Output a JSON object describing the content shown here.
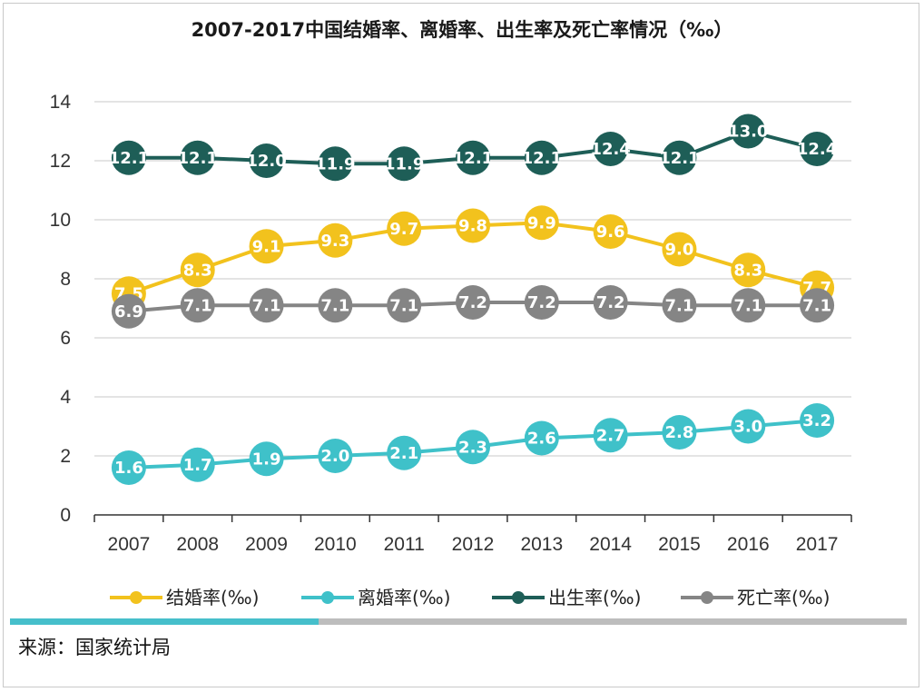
{
  "chart_data": {
    "type": "line",
    "title": "2007-2017中国结婚率、离婚率、出生率及死亡率情况（‰）",
    "categories": [
      "2007",
      "2008",
      "2009",
      "2010",
      "2011",
      "2012",
      "2013",
      "2014",
      "2015",
      "2016",
      "2017"
    ],
    "ylim": [
      0,
      14
    ],
    "yticks": [
      0,
      2,
      4,
      6,
      8,
      10,
      12,
      14
    ],
    "grid": true,
    "legend_position": "bottom",
    "series": [
      {
        "name": "结婚率(‰)",
        "color": "#f2c21d",
        "values": [
          7.5,
          8.3,
          9.1,
          9.3,
          9.7,
          9.8,
          9.9,
          9.6,
          9.0,
          8.3,
          7.7
        ]
      },
      {
        "name": "离婚率(‰)",
        "color": "#3fc1c9",
        "values": [
          1.6,
          1.7,
          1.9,
          2.0,
          2.1,
          2.3,
          2.6,
          2.7,
          2.8,
          3.0,
          3.2
        ]
      },
      {
        "name": "出生率(‰)",
        "color": "#1e5e57",
        "values": [
          12.1,
          12.1,
          12.0,
          11.9,
          11.9,
          12.1,
          12.1,
          12.4,
          12.1,
          13.0,
          12.4
        ]
      },
      {
        "name": "死亡率(‰)",
        "color": "#858585",
        "values": [
          6.9,
          7.1,
          7.1,
          7.1,
          7.1,
          7.2,
          7.2,
          7.2,
          7.1,
          7.1,
          7.1
        ]
      }
    ]
  },
  "source": "来源：国家统计局",
  "colors": {
    "bar_accent": "#46bfcb",
    "bar_rest": "#bdbdbd",
    "grid": "#d4d4d4",
    "axis": "#333333"
  }
}
